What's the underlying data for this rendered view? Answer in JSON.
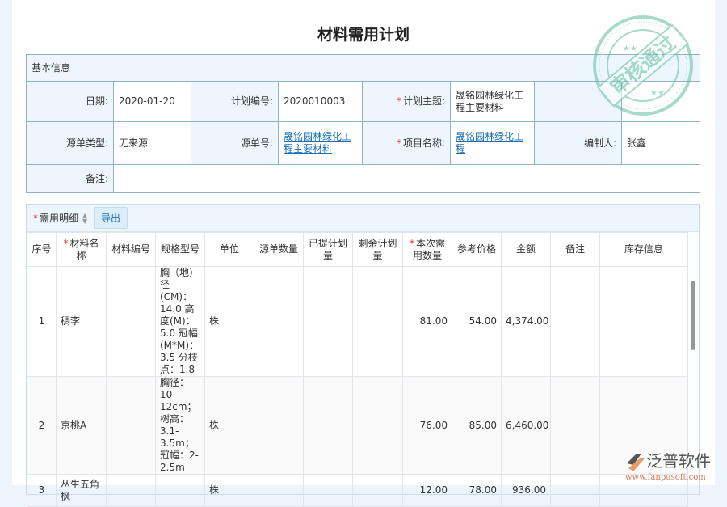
{
  "title": "材料需用计划",
  "stamp": "审核通过",
  "form": {
    "section": "基本信息",
    "date_label": "日期:",
    "date": "2020-01-20",
    "plan_no_label": "计划编号:",
    "plan_no": "2020010003",
    "subject_label": "计划主题:",
    "subject": "晟铭园林绿化工程主要材料",
    "source_type_label": "源单类型:",
    "source_type": "无来源",
    "source_no_label": "源单号:",
    "source_no": "晟铭园林绿化工程主要材料",
    "project_label": "项目名称:",
    "project": "晟铭园林绿化工程",
    "author_label": "编制人:",
    "author": "张鑫",
    "remark_label": "备注:",
    "remark": ""
  },
  "detail": {
    "section": "需用明细",
    "export": "导出",
    "columns": [
      "序号",
      "材料名称",
      "材料编号",
      "规格型号",
      "单位",
      "源单数量",
      "已提计划量",
      "剩余计划量",
      "本次需用数量",
      "参考价格",
      "金额",
      "备注",
      "库存信息"
    ],
    "rows": [
      {
        "no": "1",
        "name": "稠李",
        "code": "",
        "spec": "胸（地)径(CM)：14.0 高度(M)：5.0 冠幅(M*M)：3.5 分枝点：1.8",
        "unit": "株",
        "src_qty": "",
        "planned": "",
        "remain": "",
        "qty": "81.00",
        "price": "54.00",
        "amount": "4,374.00",
        "remark": "",
        "stock": ""
      },
      {
        "no": "2",
        "name": "京桃A",
        "code": "",
        "spec": "胸径：10-12cm；树高：3.1-3.5m；冠幅：2-2.5m",
        "unit": "株",
        "src_qty": "",
        "planned": "",
        "remain": "",
        "qty": "76.00",
        "price": "85.00",
        "amount": "6,460.00",
        "remark": "",
        "stock": ""
      },
      {
        "no": "3",
        "name": "丛生五角枫",
        "code": "",
        "spec": "",
        "unit": "株",
        "src_qty": "",
        "planned": "",
        "remain": "",
        "qty": "12.00",
        "price": "78.00",
        "amount": "936.00",
        "remark": "",
        "stock": ""
      }
    ]
  },
  "logo": {
    "name": "泛普软件",
    "url": "www.fanpusoft.com"
  },
  "colors": {
    "link": "#1a6fb0",
    "stamp": "#5fbfa0",
    "required": "#e33"
  }
}
